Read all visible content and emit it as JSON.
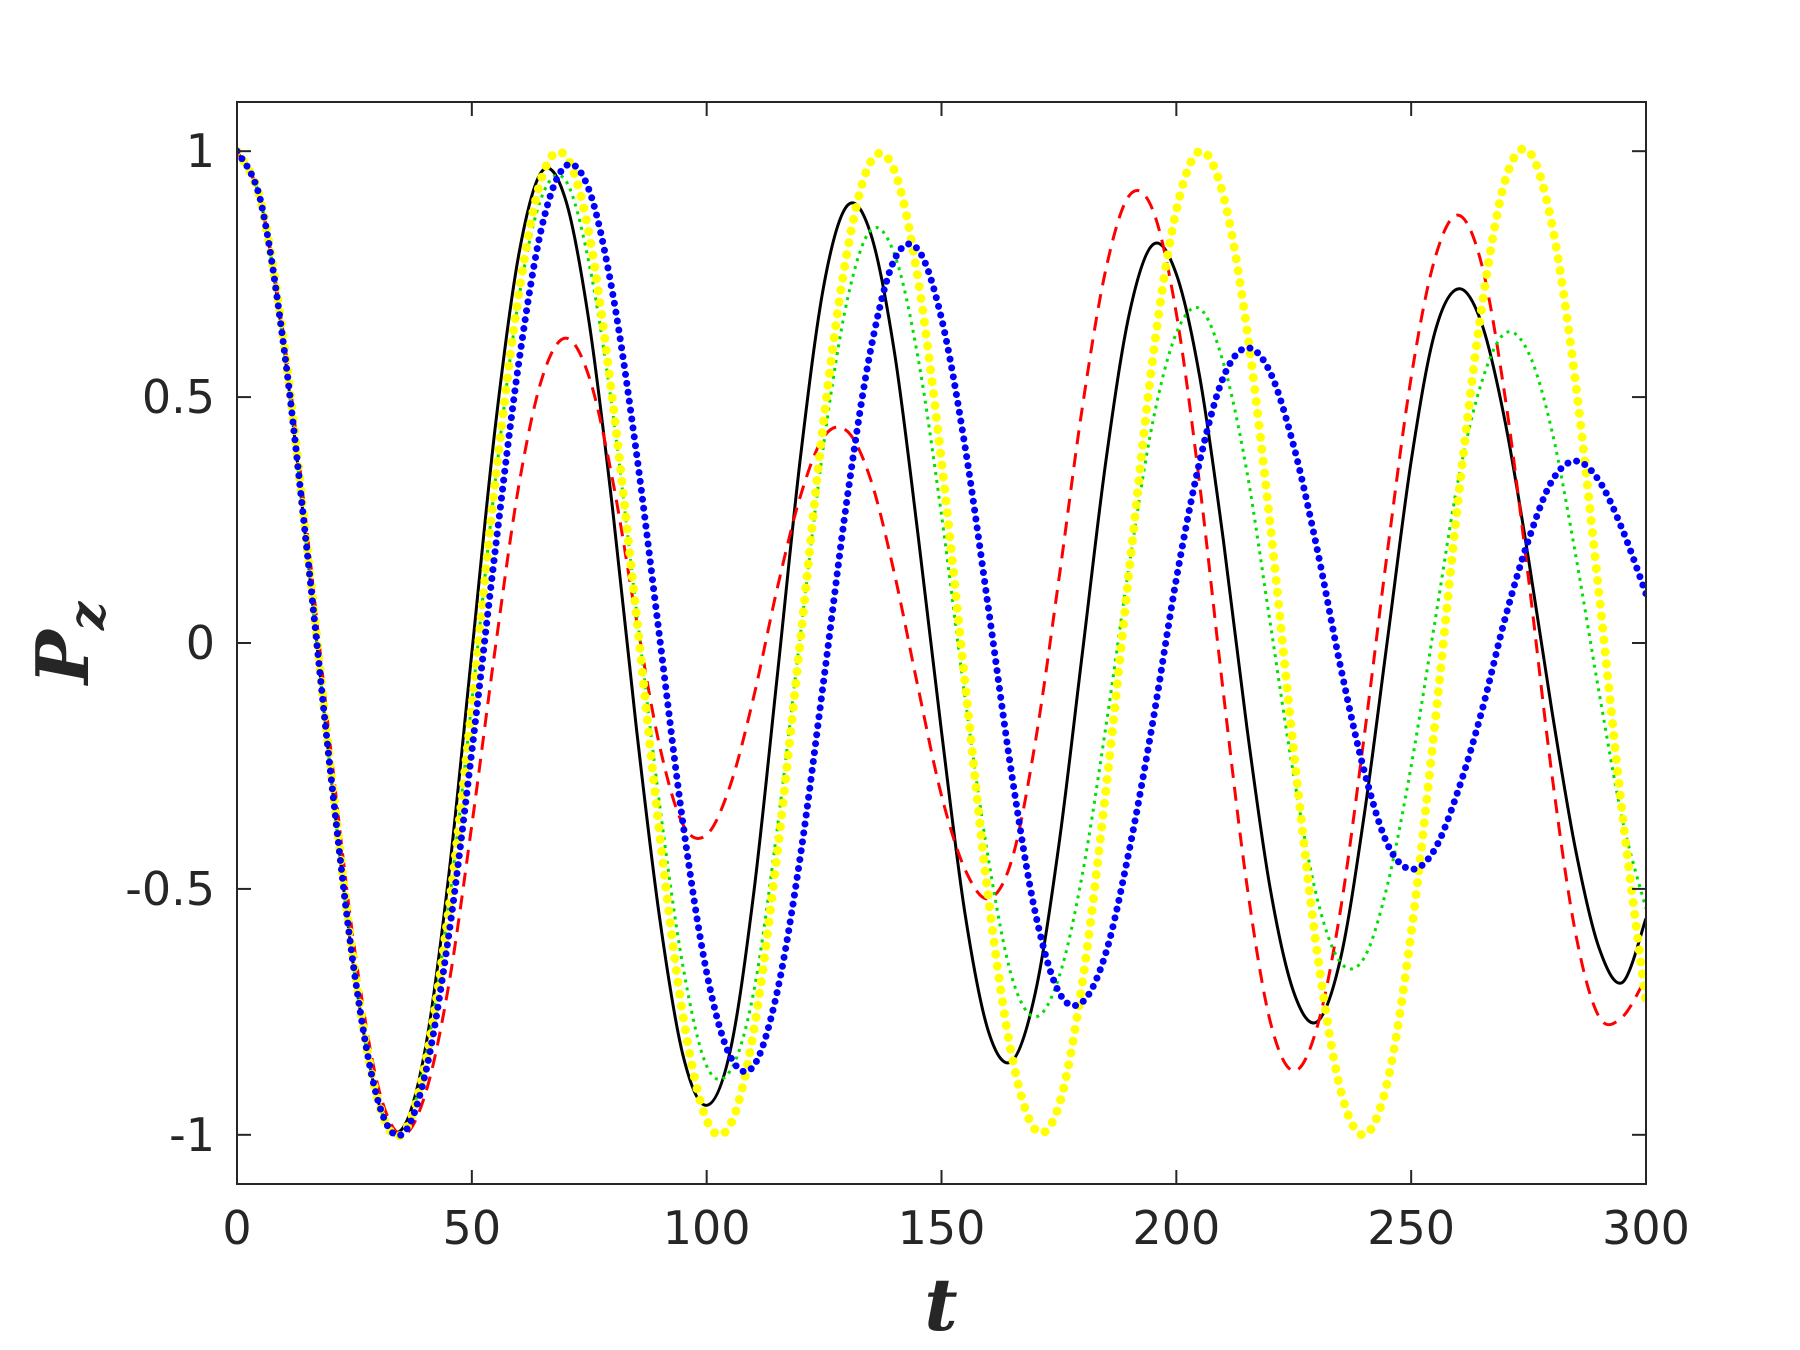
{
  "chart_data": {
    "type": "line",
    "xlabel": "t",
    "ylabel": "P",
    "ylabel_sub": "z",
    "xlim": [
      0,
      300
    ],
    "ylim": [
      -1.1,
      1.1
    ],
    "xticks": [
      0,
      50,
      100,
      150,
      200,
      250,
      300
    ],
    "yticks": [
      -1,
      -0.5,
      0,
      0.5,
      1
    ],
    "grid": false,
    "x": [
      0,
      5,
      10,
      15,
      20,
      25,
      30,
      35,
      40,
      45,
      50,
      55,
      60,
      65,
      70,
      75,
      80,
      85,
      90,
      95,
      100,
      105,
      110,
      115,
      120,
      125,
      130,
      135,
      140,
      145,
      150,
      155,
      160,
      165,
      170,
      175,
      180,
      185,
      190,
      195,
      200,
      205,
      210,
      215,
      220,
      225,
      230,
      235,
      240,
      245,
      250,
      255,
      260,
      265,
      270,
      275,
      280,
      285,
      290,
      295,
      300
    ],
    "series": [
      {
        "color": "#000000",
        "style": "solid",
        "values": [
          1,
          0.9,
          0.6,
          0.18,
          -0.27,
          -0.67,
          -0.93,
          -0.99,
          -0.83,
          -0.48,
          -0.02,
          0.44,
          0.79,
          0.96,
          0.9,
          0.65,
          0.27,
          -0.17,
          -0.56,
          -0.84,
          -0.94,
          -0.83,
          -0.51,
          -0.07,
          0.38,
          0.73,
          0.89,
          0.83,
          0.59,
          0.22,
          -0.18,
          -0.55,
          -0.79,
          -0.85,
          -0.71,
          -0.41,
          -0.02,
          0.37,
          0.67,
          0.81,
          0.75,
          0.54,
          0.21,
          -0.17,
          -0.5,
          -0.71,
          -0.77,
          -0.64,
          -0.35,
          0.01,
          0.37,
          0.63,
          0.72,
          0.65,
          0.45,
          0.17,
          -0.14,
          -0.42,
          -0.62,
          -0.69,
          -0.56
        ]
      },
      {
        "color": "#ff0000",
        "style": "dashed",
        "values": [
          1,
          0.9,
          0.62,
          0.22,
          -0.22,
          -0.62,
          -0.9,
          -1.0,
          -0.92,
          -0.7,
          -0.37,
          -0.01,
          0.32,
          0.54,
          0.62,
          0.54,
          0.33,
          0.05,
          -0.21,
          -0.37,
          -0.39,
          -0.29,
          -0.11,
          0.11,
          0.3,
          0.42,
          0.43,
          0.33,
          0.14,
          -0.09,
          -0.31,
          -0.46,
          -0.52,
          -0.44,
          -0.2,
          0.13,
          0.48,
          0.76,
          0.91,
          0.88,
          0.67,
          0.32,
          -0.1,
          -0.49,
          -0.77,
          -0.87,
          -0.78,
          -0.54,
          -0.19,
          0.19,
          0.54,
          0.78,
          0.87,
          0.77,
          0.5,
          0.13,
          -0.27,
          -0.59,
          -0.76,
          -0.76,
          -0.68
        ]
      },
      {
        "color": "#00e000",
        "style": "dotted",
        "values": [
          1,
          0.9,
          0.6,
          0.18,
          -0.27,
          -0.67,
          -0.93,
          -1.0,
          -0.85,
          -0.54,
          -0.12,
          0.33,
          0.7,
          0.91,
          0.94,
          0.77,
          0.47,
          0.07,
          -0.33,
          -0.66,
          -0.86,
          -0.87,
          -0.71,
          -0.38,
          0.02,
          0.41,
          0.7,
          0.84,
          0.79,
          0.58,
          0.26,
          -0.11,
          -0.44,
          -0.68,
          -0.76,
          -0.68,
          -0.47,
          -0.17,
          0.16,
          0.45,
          0.63,
          0.68,
          0.57,
          0.35,
          0.04,
          -0.27,
          -0.52,
          -0.65,
          -0.64,
          -0.49,
          -0.25,
          0.04,
          0.33,
          0.53,
          0.63,
          0.59,
          0.43,
          0.18,
          -0.1,
          -0.36,
          -0.54
        ]
      },
      {
        "color": "#ffff00",
        "style": "circles",
        "values": [
          1,
          0.9,
          0.61,
          0.19,
          -0.26,
          -0.66,
          -0.93,
          -1.0,
          -0.86,
          -0.55,
          -0.13,
          0.33,
          0.71,
          0.95,
          0.99,
          0.83,
          0.49,
          0.06,
          -0.39,
          -0.76,
          -0.97,
          -0.98,
          -0.79,
          -0.43,
          0.01,
          0.46,
          0.8,
          0.98,
          0.96,
          0.74,
          0.37,
          -0.08,
          -0.52,
          -0.84,
          -0.99,
          -0.94,
          -0.69,
          -0.3,
          0.15,
          0.58,
          0.88,
          1.0,
          0.91,
          0.64,
          0.24,
          -0.22,
          -0.63,
          -0.91,
          -1.0,
          -0.89,
          -0.59,
          -0.17,
          0.29,
          0.68,
          0.94,
          1.0,
          0.85,
          0.53,
          0.1,
          -0.35,
          -0.73
        ]
      },
      {
        "color": "#0000ff",
        "style": "dots",
        "values": [
          1,
          0.9,
          0.6,
          0.18,
          -0.27,
          -0.67,
          -0.93,
          -1.0,
          -0.88,
          -0.6,
          -0.22,
          0.19,
          0.57,
          0.85,
          0.97,
          0.92,
          0.71,
          0.39,
          0.01,
          -0.37,
          -0.67,
          -0.84,
          -0.86,
          -0.71,
          -0.43,
          -0.07,
          0.3,
          0.6,
          0.78,
          0.8,
          0.66,
          0.4,
          0.07,
          -0.27,
          -0.55,
          -0.71,
          -0.73,
          -0.63,
          -0.42,
          -0.16,
          0.13,
          0.37,
          0.54,
          0.6,
          0.55,
          0.4,
          0.19,
          -0.05,
          -0.26,
          -0.41,
          -0.46,
          -0.42,
          -0.3,
          -0.14,
          0.05,
          0.21,
          0.33,
          0.37,
          0.33,
          0.23,
          0.1
        ]
      }
    ]
  }
}
